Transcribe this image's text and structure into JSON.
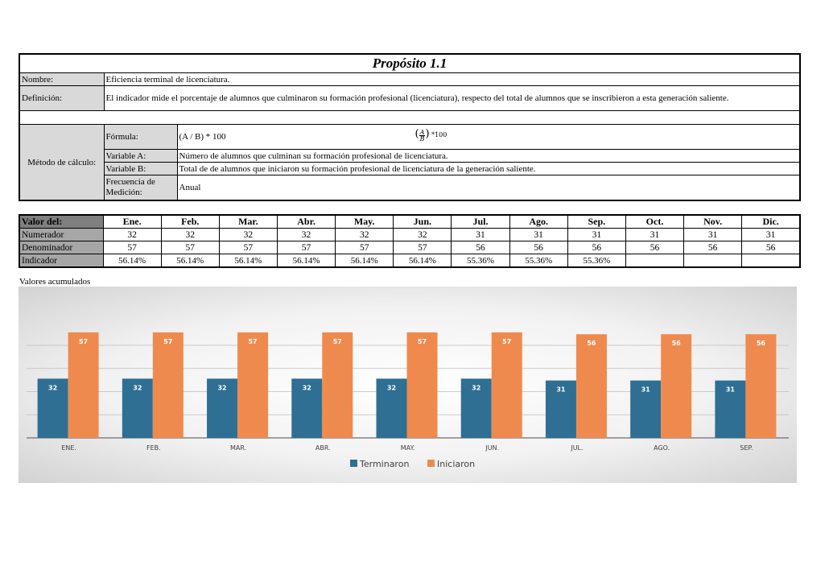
{
  "header": {
    "title": "Propósito 1.1",
    "nombre_label": "Nombre:",
    "nombre_value": "Eficiencia terminal de licenciatura.",
    "definicion_label": "Definición:",
    "definicion_value": "El indicador mide el porcentaje de alumnos que culminaron su formación profesional (licenciatura), respecto del total de alumnos que se inscribieron a esta generación saliente."
  },
  "metodo": {
    "label": "Método de cálculo:",
    "formula_label": "Fórmula:",
    "formula_value": "(A / B) * 100",
    "formula_render": {
      "open": "(",
      "num": "A",
      "den": "B",
      "close": ")",
      "tail": "*100"
    },
    "variable_a_label": "Variable A:",
    "variable_a_value": "Número de alumnos que culminan su formación profesional de licenciatura.",
    "variable_b_label": "Variable B:",
    "variable_b_value": "Total de de alumnos que iniciaron su formación profesional de licenciatura de la generación saliente.",
    "frecuencia_label": "Frecuencia de Medición:",
    "frecuencia_value": "Anual"
  },
  "valores": {
    "header_label": "Valor del:",
    "months": [
      "Ene.",
      "Feb.",
      "Mar.",
      "Abr.",
      "May.",
      "Jun.",
      "Jul.",
      "Ago.",
      "Sep.",
      "Oct.",
      "Nov.",
      "Dic."
    ],
    "numerador_label": "Numerador",
    "numerador": [
      "32",
      "32",
      "32",
      "32",
      "32",
      "32",
      "31",
      "31",
      "31",
      "31",
      "31",
      "31"
    ],
    "denominador_label": "Denominador",
    "denominador": [
      "57",
      "57",
      "57",
      "57",
      "57",
      "57",
      "56",
      "56",
      "56",
      "56",
      "56",
      "56"
    ],
    "indicador_label": "Indicador",
    "indicador": [
      "56.14%",
      "56.14%",
      "56.14%",
      "56.14%",
      "56.14%",
      "56.14%",
      "55.36%",
      "55.36%",
      "55.36%",
      "",
      "",
      ""
    ]
  },
  "accumulated_label": "Valores acumulados",
  "chart_data": {
    "type": "bar",
    "categories": [
      "ENE.",
      "FEB.",
      "MAR.",
      "ABR.",
      "MAY.",
      "JUN.",
      "JUL.",
      "AGO.",
      "SEP."
    ],
    "series": [
      {
        "name": "Terminaron",
        "color": "#2e6f93",
        "values": [
          32,
          32,
          32,
          32,
          32,
          32,
          31,
          31,
          31
        ]
      },
      {
        "name": "Iniciaron",
        "color": "#ef8a4f",
        "values": [
          57,
          57,
          57,
          57,
          57,
          57,
          56,
          56,
          56
        ]
      }
    ],
    "ylim": [
      0,
      60
    ],
    "grid": true,
    "legend": "bottom",
    "data_labels": true
  }
}
